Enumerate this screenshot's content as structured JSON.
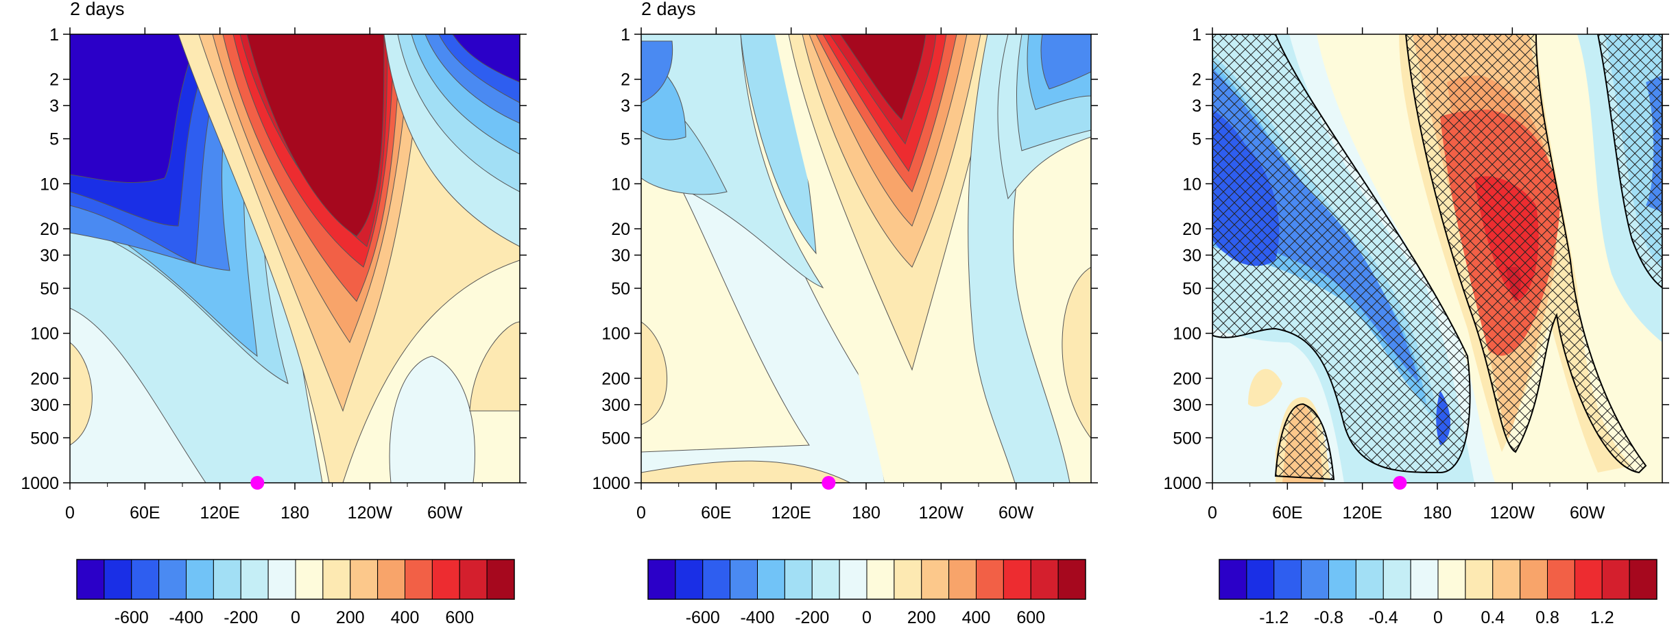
{
  "chart_data": [
    {
      "type": "heatmap",
      "title": "2 days",
      "x_ticks": [
        "0",
        "60E",
        "120E",
        "180",
        "120W",
        "60W"
      ],
      "y_ticks": [
        "1",
        "2",
        "3",
        "5",
        "10",
        "20",
        "30",
        "50",
        "100",
        "200",
        "300",
        "500",
        "1000"
      ],
      "y_scale": "log",
      "y_inverted": true,
      "xlim": [
        0,
        360
      ],
      "ylim": [
        1000,
        1
      ],
      "marker": {
        "x": 150,
        "y": 1000,
        "color": "#ff00ff"
      },
      "colorbar_labels": [
        "-600",
        "-400",
        "-200",
        "0",
        "200",
        "400",
        "600"
      ]
    },
    {
      "type": "heatmap",
      "title": "2 days",
      "x_ticks": [
        "0",
        "60E",
        "120E",
        "180",
        "120W",
        "60W"
      ],
      "y_ticks": [
        "1",
        "2",
        "3",
        "5",
        "10",
        "20",
        "30",
        "50",
        "100",
        "200",
        "300",
        "500",
        "1000"
      ],
      "y_scale": "log",
      "y_inverted": true,
      "xlim": [
        0,
        360
      ],
      "ylim": [
        1000,
        1
      ],
      "marker": {
        "x": 150,
        "y": 1000,
        "color": "#ff00ff"
      },
      "colorbar_labels": [
        "-600",
        "-400",
        "-200",
        "0",
        "200",
        "400",
        "600"
      ]
    },
    {
      "type": "heatmap",
      "title": "",
      "hatching": true,
      "x_ticks": [
        "0",
        "60E",
        "120E",
        "180",
        "120W",
        "60W"
      ],
      "y_ticks": [
        "1",
        "2",
        "3",
        "5",
        "10",
        "20",
        "30",
        "50",
        "100",
        "200",
        "300",
        "500",
        "1000"
      ],
      "y_scale": "log",
      "y_inverted": true,
      "xlim": [
        0,
        360
      ],
      "ylim": [
        1000,
        1
      ],
      "marker": {
        "x": 150,
        "y": 1000,
        "color": "#ff00ff"
      },
      "colorbar_labels": [
        "-1.2",
        "-0.8",
        "-0.4",
        "0",
        "0.4",
        "0.8",
        "1.2"
      ]
    }
  ],
  "palette": [
    "#2b00c8",
    "#1a2fe6",
    "#2e5ef0",
    "#4a8af2",
    "#71c3f7",
    "#a2dff5",
    "#c5eef6",
    "#e9f9fa",
    "#fefbdb",
    "#fde9b2",
    "#fcc88b",
    "#f8a46a",
    "#f26046",
    "#ed2c30",
    "#d41f2d",
    "#a6081e"
  ]
}
